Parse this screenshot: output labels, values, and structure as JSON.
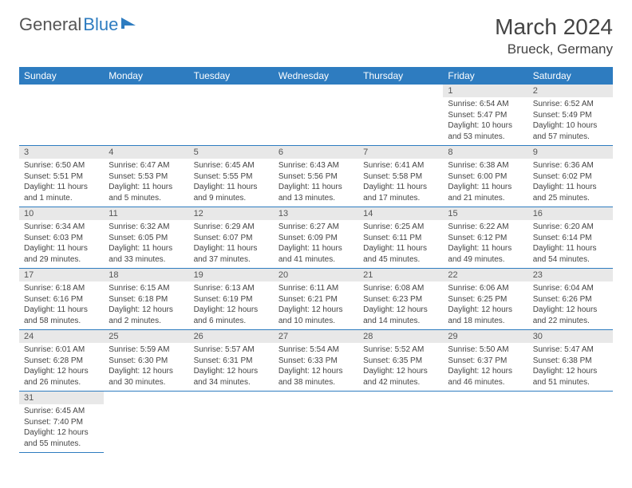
{
  "logo": {
    "general": "General",
    "blue": "Blue"
  },
  "title": "March 2024",
  "location": "Brueck, Germany",
  "colors": {
    "header_bg": "#2e7cc0",
    "header_fg": "#ffffff",
    "daynum_bg": "#e8e8e8",
    "border": "#2e7cc0"
  },
  "weekdays": [
    "Sunday",
    "Monday",
    "Tuesday",
    "Wednesday",
    "Thursday",
    "Friday",
    "Saturday"
  ],
  "weeks": [
    [
      null,
      null,
      null,
      null,
      null,
      {
        "n": "1",
        "rise": "6:54 AM",
        "set": "5:47 PM",
        "day": "10 hours and 53 minutes."
      },
      {
        "n": "2",
        "rise": "6:52 AM",
        "set": "5:49 PM",
        "day": "10 hours and 57 minutes."
      }
    ],
    [
      {
        "n": "3",
        "rise": "6:50 AM",
        "set": "5:51 PM",
        "day": "11 hours and 1 minute."
      },
      {
        "n": "4",
        "rise": "6:47 AM",
        "set": "5:53 PM",
        "day": "11 hours and 5 minutes."
      },
      {
        "n": "5",
        "rise": "6:45 AM",
        "set": "5:55 PM",
        "day": "11 hours and 9 minutes."
      },
      {
        "n": "6",
        "rise": "6:43 AM",
        "set": "5:56 PM",
        "day": "11 hours and 13 minutes."
      },
      {
        "n": "7",
        "rise": "6:41 AM",
        "set": "5:58 PM",
        "day": "11 hours and 17 minutes."
      },
      {
        "n": "8",
        "rise": "6:38 AM",
        "set": "6:00 PM",
        "day": "11 hours and 21 minutes."
      },
      {
        "n": "9",
        "rise": "6:36 AM",
        "set": "6:02 PM",
        "day": "11 hours and 25 minutes."
      }
    ],
    [
      {
        "n": "10",
        "rise": "6:34 AM",
        "set": "6:03 PM",
        "day": "11 hours and 29 minutes."
      },
      {
        "n": "11",
        "rise": "6:32 AM",
        "set": "6:05 PM",
        "day": "11 hours and 33 minutes."
      },
      {
        "n": "12",
        "rise": "6:29 AM",
        "set": "6:07 PM",
        "day": "11 hours and 37 minutes."
      },
      {
        "n": "13",
        "rise": "6:27 AM",
        "set": "6:09 PM",
        "day": "11 hours and 41 minutes."
      },
      {
        "n": "14",
        "rise": "6:25 AM",
        "set": "6:11 PM",
        "day": "11 hours and 45 minutes."
      },
      {
        "n": "15",
        "rise": "6:22 AM",
        "set": "6:12 PM",
        "day": "11 hours and 49 minutes."
      },
      {
        "n": "16",
        "rise": "6:20 AM",
        "set": "6:14 PM",
        "day": "11 hours and 54 minutes."
      }
    ],
    [
      {
        "n": "17",
        "rise": "6:18 AM",
        "set": "6:16 PM",
        "day": "11 hours and 58 minutes."
      },
      {
        "n": "18",
        "rise": "6:15 AM",
        "set": "6:18 PM",
        "day": "12 hours and 2 minutes."
      },
      {
        "n": "19",
        "rise": "6:13 AM",
        "set": "6:19 PM",
        "day": "12 hours and 6 minutes."
      },
      {
        "n": "20",
        "rise": "6:11 AM",
        "set": "6:21 PM",
        "day": "12 hours and 10 minutes."
      },
      {
        "n": "21",
        "rise": "6:08 AM",
        "set": "6:23 PM",
        "day": "12 hours and 14 minutes."
      },
      {
        "n": "22",
        "rise": "6:06 AM",
        "set": "6:25 PM",
        "day": "12 hours and 18 minutes."
      },
      {
        "n": "23",
        "rise": "6:04 AM",
        "set": "6:26 PM",
        "day": "12 hours and 22 minutes."
      }
    ],
    [
      {
        "n": "24",
        "rise": "6:01 AM",
        "set": "6:28 PM",
        "day": "12 hours and 26 minutes."
      },
      {
        "n": "25",
        "rise": "5:59 AM",
        "set": "6:30 PM",
        "day": "12 hours and 30 minutes."
      },
      {
        "n": "26",
        "rise": "5:57 AM",
        "set": "6:31 PM",
        "day": "12 hours and 34 minutes."
      },
      {
        "n": "27",
        "rise": "5:54 AM",
        "set": "6:33 PM",
        "day": "12 hours and 38 minutes."
      },
      {
        "n": "28",
        "rise": "5:52 AM",
        "set": "6:35 PM",
        "day": "12 hours and 42 minutes."
      },
      {
        "n": "29",
        "rise": "5:50 AM",
        "set": "6:37 PM",
        "day": "12 hours and 46 minutes."
      },
      {
        "n": "30",
        "rise": "5:47 AM",
        "set": "6:38 PM",
        "day": "12 hours and 51 minutes."
      }
    ],
    [
      {
        "n": "31",
        "rise": "6:45 AM",
        "set": "7:40 PM",
        "day": "12 hours and 55 minutes."
      },
      null,
      null,
      null,
      null,
      null,
      null
    ]
  ],
  "labels": {
    "sunrise": "Sunrise: ",
    "sunset": "Sunset: ",
    "daylight": "Daylight: "
  }
}
